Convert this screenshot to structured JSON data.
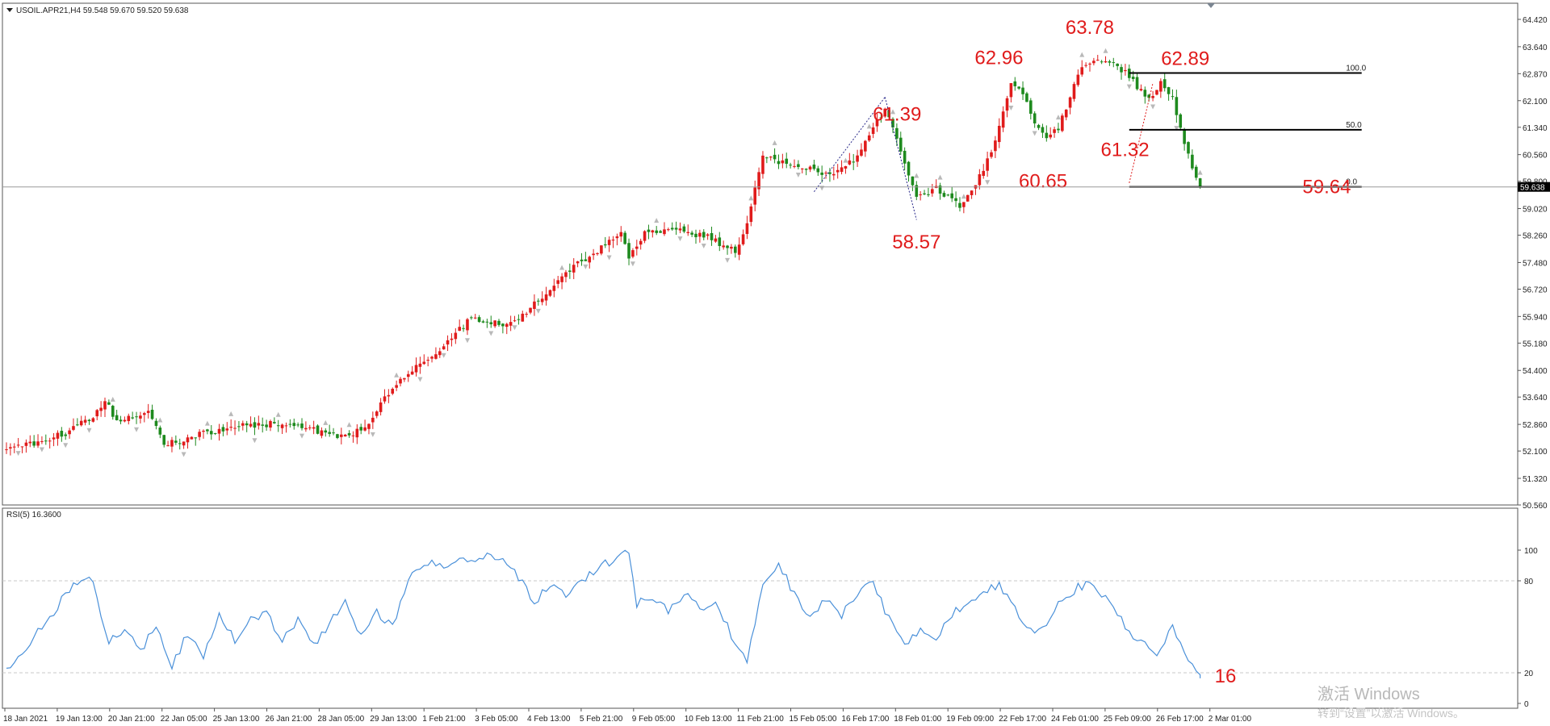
{
  "header": {
    "main_label": "USOIL.APR21,H4  59.548 59.670 59.520 59.638",
    "rsi_label": "RSI(5) 16.3600",
    "price_tag": "59.638"
  },
  "watermark": {
    "line1": "激活 Windows",
    "line2": "转到“设置”以激活 Windows。"
  },
  "colors": {
    "bull": "#e01b1b",
    "bear": "#1e8a1e",
    "rsi": "#4a90d9",
    "annotation": "#e01b1b"
  },
  "chart_data": [
    {
      "type": "candlestick",
      "symbol": "USOIL.APR21",
      "timeframe": "H4",
      "ylim": [
        50.56,
        64.8
      ],
      "y_ticks": [
        "64.420",
        "63.640",
        "62.870",
        "62.100",
        "61.340",
        "60.560",
        "59.800",
        "59.020",
        "58.260",
        "57.480",
        "56.720",
        "55.940",
        "55.180",
        "54.400",
        "53.640",
        "52.860",
        "52.100",
        "51.320",
        "50.560"
      ],
      "x_ticks": [
        "18 Jan 2021",
        "19 Jan 13:00",
        "20 Jan 21:00",
        "22 Jan 05:00",
        "25 Jan 13:00",
        "26 Jan 21:00",
        "28 Jan 05:00",
        "29 Jan 13:00",
        "1 Feb 21:00",
        "3 Feb 05:00",
        "4 Feb 13:00",
        "5 Feb 21:00",
        "9 Feb 05:00",
        "10 Feb 13:00",
        "11 Feb 21:00",
        "15 Feb 05:00",
        "16 Feb 17:00",
        "18 Feb 01:00",
        "19 Feb 09:00",
        "22 Feb 17:00",
        "24 Feb 01:00",
        "25 Feb 09:00",
        "26 Feb 17:00",
        "2 Mar 01:00"
      ],
      "close_path": [
        [
          0,
          52.1
        ],
        [
          15,
          52.6
        ],
        [
          22,
          53.1
        ],
        [
          25,
          53.5
        ],
        [
          28,
          53.0
        ],
        [
          36,
          53.2
        ],
        [
          40,
          52.3
        ],
        [
          45,
          52.4
        ],
        [
          50,
          52.6
        ],
        [
          58,
          52.8
        ],
        [
          70,
          52.9
        ],
        [
          78,
          52.7
        ],
        [
          85,
          52.5
        ],
        [
          92,
          52.8
        ],
        [
          95,
          53.5
        ],
        [
          102,
          54.3
        ],
        [
          110,
          55.0
        ],
        [
          118,
          55.9
        ],
        [
          128,
          55.7
        ],
        [
          135,
          56.4
        ],
        [
          142,
          57.2
        ],
        [
          150,
          57.8
        ],
        [
          156,
          58.3
        ],
        [
          158,
          57.6
        ],
        [
          162,
          58.3
        ],
        [
          170,
          58.4
        ],
        [
          178,
          58.2
        ],
        [
          185,
          57.8
        ],
        [
          188,
          58.6
        ],
        [
          190,
          59.7
        ],
        [
          192,
          60.5
        ],
        [
          198,
          60.3
        ],
        [
          205,
          60.1
        ],
        [
          210,
          60.0
        ],
        [
          215,
          60.4
        ],
        [
          220,
          61.3
        ],
        [
          223,
          61.9
        ],
        [
          226,
          61.0
        ],
        [
          228,
          60.3
        ],
        [
          231,
          59.3
        ],
        [
          236,
          59.6
        ],
        [
          242,
          59.1
        ],
        [
          246,
          59.7
        ],
        [
          250,
          60.6
        ],
        [
          253,
          61.8
        ],
        [
          255,
          62.6
        ],
        [
          258,
          62.3
        ],
        [
          261,
          61.4
        ],
        [
          264,
          61.0
        ],
        [
          267,
          61.3
        ],
        [
          270,
          62.2
        ],
        [
          273,
          63.1
        ],
        [
          276,
          63.3
        ],
        [
          280,
          63.2
        ],
        [
          284,
          62.9
        ],
        [
          287,
          62.5
        ],
        [
          290,
          62.1
        ],
        [
          293,
          62.6
        ],
        [
          296,
          62.2
        ],
        [
          298,
          61.3
        ],
        [
          300,
          60.5
        ],
        [
          303,
          59.6
        ]
      ],
      "current_price": 59.638,
      "swing_labels": [
        {
          "text": "61.39",
          "bar": 223,
          "price": 61.39
        },
        {
          "text": "58.57",
          "bar": 231,
          "price": 58.57
        },
        {
          "text": "62.96",
          "bar": 255,
          "price": 62.96
        },
        {
          "text": "60.65",
          "bar": 258,
          "price": 60.65
        },
        {
          "text": "63.78",
          "bar": 276,
          "price": 63.78
        },
        {
          "text": "62.89",
          "bar": 290,
          "price": 62.89
        },
        {
          "text": "61.32",
          "bar": 287,
          "price": 61.32
        },
        {
          "text": "59.64",
          "bar": 330,
          "price": 59.64
        }
      ],
      "fibonacci": {
        "levels": [
          {
            "label": "100.0",
            "price": 62.89
          },
          {
            "label": "50.0",
            "price": 61.27
          },
          {
            "label": "0.0",
            "price": 59.64
          }
        ]
      }
    },
    {
      "type": "line",
      "name": "RSI(5)",
      "ylim": [
        0,
        100
      ],
      "y_ticks": [
        "100",
        "80",
        "20",
        "0"
      ],
      "levels": [
        80,
        20
      ],
      "last_value": 16.36,
      "last_label": "16",
      "path": [
        [
          0,
          22
        ],
        [
          6,
          40
        ],
        [
          12,
          60
        ],
        [
          16,
          75
        ],
        [
          20,
          82
        ],
        [
          22,
          78
        ],
        [
          26,
          40
        ],
        [
          30,
          48
        ],
        [
          34,
          35
        ],
        [
          38,
          50
        ],
        [
          42,
          25
        ],
        [
          46,
          45
        ],
        [
          50,
          32
        ],
        [
          54,
          58
        ],
        [
          58,
          40
        ],
        [
          62,
          55
        ],
        [
          66,
          60
        ],
        [
          70,
          40
        ],
        [
          74,
          55
        ],
        [
          78,
          38
        ],
        [
          82,
          52
        ],
        [
          86,
          65
        ],
        [
          90,
          45
        ],
        [
          94,
          60
        ],
        [
          98,
          50
        ],
        [
          102,
          80
        ],
        [
          106,
          92
        ],
        [
          110,
          90
        ],
        [
          114,
          93
        ],
        [
          118,
          92
        ],
        [
          122,
          97
        ],
        [
          126,
          96
        ],
        [
          130,
          82
        ],
        [
          134,
          65
        ],
        [
          138,
          78
        ],
        [
          142,
          72
        ],
        [
          146,
          80
        ],
        [
          150,
          88
        ],
        [
          154,
          94
        ],
        [
          158,
          98
        ],
        [
          160,
          65
        ],
        [
          164,
          68
        ],
        [
          168,
          60
        ],
        [
          172,
          72
        ],
        [
          176,
          62
        ],
        [
          180,
          68
        ],
        [
          184,
          45
        ],
        [
          188,
          28
        ],
        [
          192,
          78
        ],
        [
          196,
          90
        ],
        [
          200,
          72
        ],
        [
          204,
          55
        ],
        [
          208,
          68
        ],
        [
          212,
          57
        ],
        [
          216,
          72
        ],
        [
          220,
          80
        ],
        [
          224,
          55
        ],
        [
          228,
          38
        ],
        [
          232,
          48
        ],
        [
          236,
          42
        ],
        [
          240,
          58
        ],
        [
          244,
          65
        ],
        [
          248,
          72
        ],
        [
          252,
          78
        ],
        [
          256,
          62
        ],
        [
          260,
          48
        ],
        [
          264,
          50
        ],
        [
          268,
          68
        ],
        [
          272,
          76
        ],
        [
          276,
          78
        ],
        [
          280,
          66
        ],
        [
          284,
          50
        ],
        [
          288,
          40
        ],
        [
          292,
          30
        ],
        [
          296,
          50
        ],
        [
          300,
          30
        ],
        [
          303,
          16
        ]
      ]
    }
  ]
}
